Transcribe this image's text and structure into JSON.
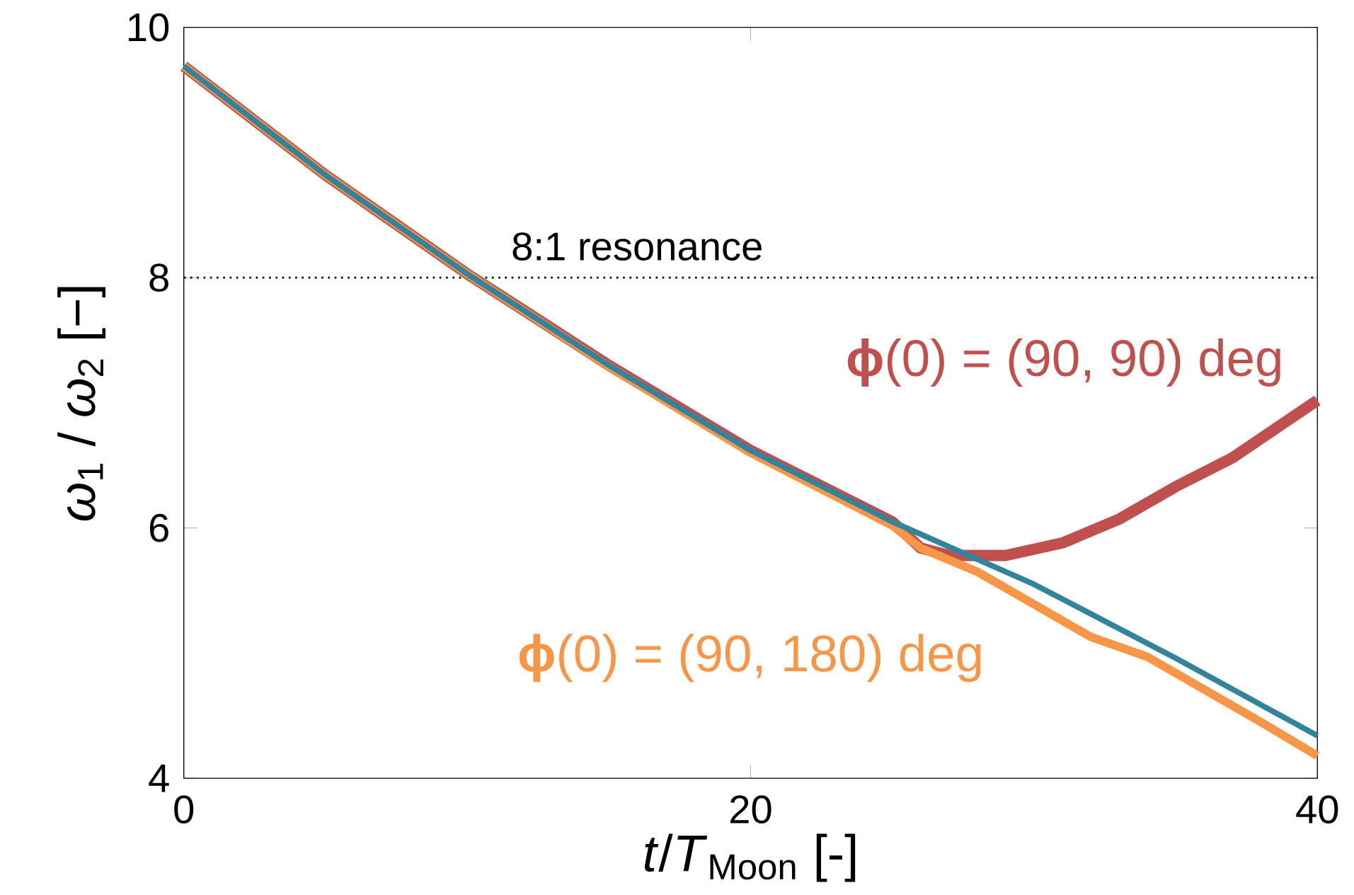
{
  "chart_data": {
    "type": "line",
    "xlabel": "*t*/*T*$_{Moon}$ [-]",
    "ylabel": "*ω*$_{1}$ / *ω*$_{2}$ [−]",
    "xlim": [
      0,
      40
    ],
    "ylim": [
      4,
      10
    ],
    "xticks": [
      0,
      20,
      40
    ],
    "yticks": [
      4,
      6,
      8,
      10
    ],
    "ref_lines": [
      {
        "axis": "y",
        "value": 8,
        "label": "8:1 resonance",
        "color": "#000000",
        "line_style": "dotted"
      }
    ],
    "series": [
      {
        "name": "**ϕ**(0) = (90, 90) deg",
        "color": "#c0504d",
        "x": [
          0,
          5,
          10,
          15,
          20,
          25,
          26,
          27,
          29,
          31,
          33,
          35,
          37,
          40
        ],
        "values": [
          9.69,
          8.82,
          8.03,
          7.3,
          6.62,
          6.05,
          5.84,
          5.78,
          5.78,
          5.88,
          6.07,
          6.33,
          6.56,
          7.02
        ]
      },
      {
        "name": "**ϕ**(0) = (90, 180) deg",
        "color": "#f79646",
        "x": [
          0,
          5,
          10,
          15,
          20,
          25,
          26,
          28,
          30,
          32,
          34,
          36,
          38,
          40
        ],
        "values": [
          9.69,
          8.82,
          8.03,
          7.29,
          6.6,
          6.02,
          5.84,
          5.65,
          5.39,
          5.13,
          4.97,
          4.71,
          4.45,
          4.18
        ]
      },
      {
        "color": "#31849b",
        "x": [
          0,
          5,
          10,
          15,
          20,
          25,
          28,
          30,
          35,
          40
        ],
        "values": [
          9.69,
          8.82,
          8.03,
          7.3,
          6.62,
          6.05,
          5.75,
          5.55,
          4.96,
          4.34
        ]
      }
    ]
  }
}
